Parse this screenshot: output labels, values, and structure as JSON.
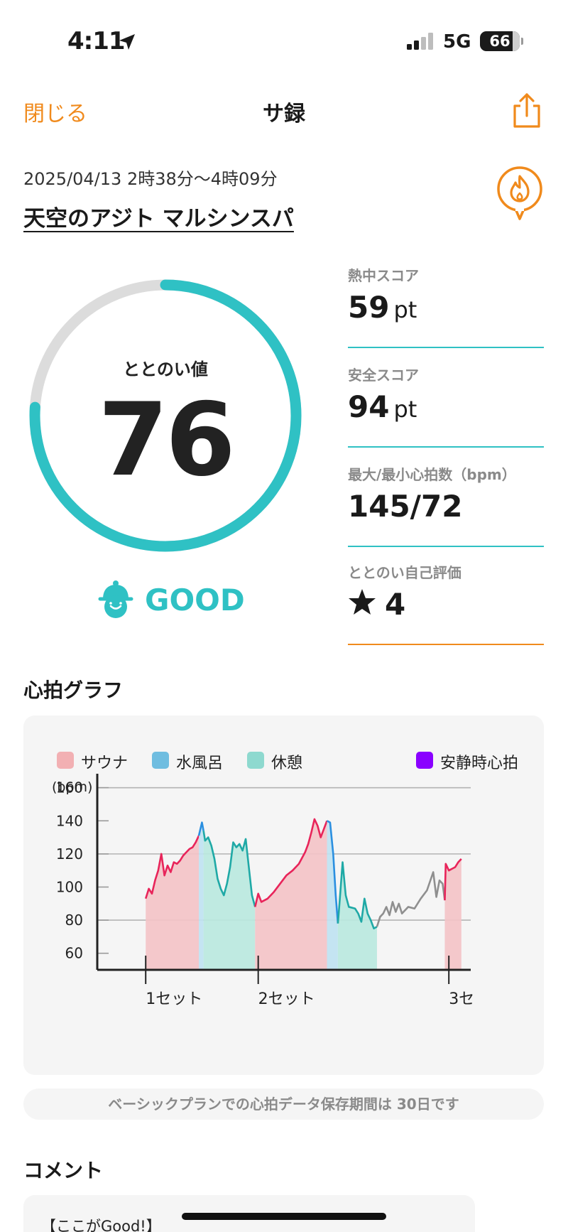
{
  "status_bar": {
    "time": "4:11",
    "network": "5G",
    "battery": "66"
  },
  "nav": {
    "close_label": "閉じる",
    "title": "サ録"
  },
  "visit": {
    "date_range": "2025/04/13 2時38分〜4時09分",
    "facility": "天空のアジト マルシンスパ"
  },
  "gauge": {
    "label": "ととのい値",
    "value": "76",
    "max": 100,
    "rating": "GOOD",
    "color": "#2fc1c4",
    "track_color": "#dcdcdc"
  },
  "stats": [
    {
      "label": "熱中スコア",
      "value": "59",
      "unit": "pt"
    },
    {
      "label": "安全スコア",
      "value": "94",
      "unit": "pt"
    },
    {
      "label": "最大/最小心拍数（bpm）",
      "value": "145/72",
      "unit": ""
    },
    {
      "label": "ととのい自己評価",
      "value": "4",
      "unit": "",
      "icon": "star-icon"
    }
  ],
  "heart_rate_section": {
    "title": "心拍グラフ"
  },
  "chart_data": {
    "type": "line",
    "ylabel": "(bpm)",
    "yticks": [
      60,
      80,
      100,
      120,
      140,
      160
    ],
    "ylim": [
      50,
      165
    ],
    "legend": [
      {
        "name": "サウナ",
        "color": "#f2b0b3"
      },
      {
        "name": "水風呂",
        "color": "#6fbde0"
      },
      {
        "name": "休憩",
        "color": "#8ed9cf"
      },
      {
        "name": "安静時心拍",
        "color": "#8a00ff"
      }
    ],
    "xlim": [
      0,
      112
    ],
    "set_markers": [
      {
        "x": 8,
        "label": "1セット"
      },
      {
        "x": 44,
        "label": "2セット"
      },
      {
        "x": 105,
        "label": "3セ"
      }
    ],
    "segments": [
      {
        "phase": "sauna",
        "line_color": "#e8245a",
        "fill_color": "#f4c3c6",
        "filled": true,
        "points": [
          [
            8,
            93
          ],
          [
            9,
            99
          ],
          [
            10,
            96
          ],
          [
            11,
            104
          ],
          [
            12,
            110
          ],
          [
            13,
            120
          ],
          [
            14,
            107
          ],
          [
            15,
            113
          ],
          [
            16,
            109
          ],
          [
            17,
            115
          ],
          [
            18,
            114
          ],
          [
            19,
            116
          ],
          [
            20,
            119
          ],
          [
            21,
            121
          ],
          [
            22,
            123
          ],
          [
            23,
            124
          ],
          [
            24,
            127
          ],
          [
            25,
            131
          ]
        ]
      },
      {
        "phase": "cold_bath",
        "line_color": "#2b8fe0",
        "fill_color": "#bfe2f2",
        "filled": true,
        "points": [
          [
            25,
            131
          ],
          [
            26,
            139
          ],
          [
            26.5,
            134
          ]
        ]
      },
      {
        "phase": "rest",
        "line_color": "#1fa9a6",
        "fill_color": "#b9e9df",
        "filled": true,
        "points": [
          [
            26.5,
            134
          ],
          [
            27,
            128
          ],
          [
            28,
            130
          ],
          [
            29,
            125
          ],
          [
            30,
            117
          ],
          [
            31,
            105
          ],
          [
            32,
            99
          ],
          [
            33,
            95
          ],
          [
            34,
            102
          ],
          [
            35,
            112
          ],
          [
            36,
            127
          ],
          [
            37,
            124
          ],
          [
            38,
            126
          ],
          [
            39,
            122
          ],
          [
            40,
            129
          ],
          [
            41,
            112
          ],
          [
            42,
            95
          ],
          [
            43,
            88
          ]
        ]
      },
      {
        "phase": "sauna",
        "line_color": "#e8245a",
        "fill_color": "#f4c3c6",
        "filled": true,
        "points": [
          [
            43,
            88
          ],
          [
            44,
            96
          ],
          [
            45,
            91
          ],
          [
            47,
            93
          ],
          [
            49,
            97
          ],
          [
            51,
            102
          ],
          [
            53,
            107
          ],
          [
            55,
            110
          ],
          [
            57,
            114
          ],
          [
            59,
            121
          ],
          [
            60,
            126
          ],
          [
            61,
            133
          ],
          [
            62,
            141
          ],
          [
            63,
            137
          ],
          [
            64,
            130
          ],
          [
            65,
            135
          ],
          [
            66,
            140
          ]
        ]
      },
      {
        "phase": "cold_bath",
        "line_color": "#2b8fe0",
        "fill_color": "#bfe2f2",
        "filled": true,
        "points": [
          [
            66,
            140
          ],
          [
            67,
            139
          ],
          [
            68,
            120
          ],
          [
            68.8,
            95
          ],
          [
            69.5,
            78
          ]
        ]
      },
      {
        "phase": "rest",
        "line_color": "#1fa9a6",
        "fill_color": "#b9e9df",
        "filled": true,
        "points": [
          [
            69.5,
            78
          ],
          [
            70,
            90
          ],
          [
            71,
            115
          ],
          [
            72,
            95
          ],
          [
            73,
            88
          ],
          [
            75,
            87
          ],
          [
            76,
            84
          ],
          [
            77,
            79
          ],
          [
            78,
            93
          ],
          [
            79,
            84
          ],
          [
            80,
            80
          ],
          [
            81,
            75
          ],
          [
            82,
            76
          ]
        ]
      },
      {
        "phase": "unrecorded",
        "line_color": "#8f8f8f",
        "fill_color": "none",
        "filled": false,
        "points": [
          [
            82,
            76
          ],
          [
            83,
            82
          ],
          [
            84,
            84
          ],
          [
            85,
            88
          ],
          [
            86,
            83
          ],
          [
            87,
            91
          ],
          [
            88,
            85
          ],
          [
            89,
            90
          ],
          [
            90,
            84
          ],
          [
            92,
            88
          ],
          [
            94,
            87
          ],
          [
            96,
            93
          ],
          [
            98,
            98
          ],
          [
            100,
            109
          ],
          [
            101,
            94
          ],
          [
            102,
            104
          ],
          [
            103,
            102
          ],
          [
            103.7,
            92
          ]
        ]
      },
      {
        "phase": "sauna",
        "line_color": "#e8245a",
        "fill_color": "#f4c3c6",
        "filled": true,
        "points": [
          [
            103.7,
            92
          ],
          [
            104,
            114
          ],
          [
            105,
            110
          ],
          [
            107,
            112
          ],
          [
            108,
            115
          ],
          [
            109,
            117
          ]
        ]
      }
    ]
  },
  "notice": "ベーシックプランでの心拍データ保存期間は 30日です",
  "comment_section": {
    "title": "コメント",
    "preview": "【ここがGood!】"
  }
}
